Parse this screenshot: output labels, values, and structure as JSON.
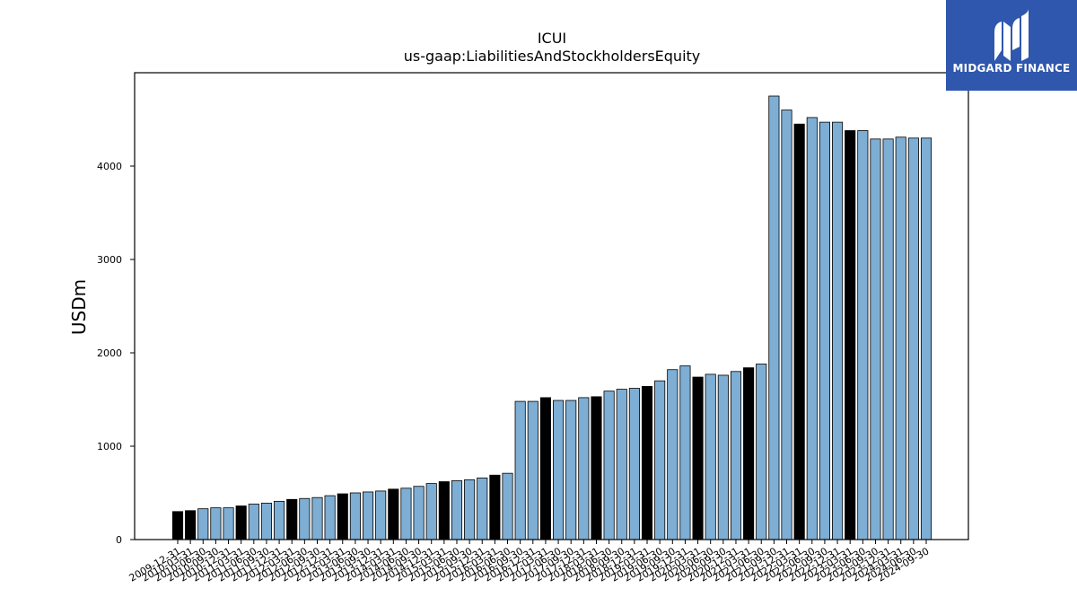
{
  "chart_data": {
    "type": "bar",
    "title": "ICUI",
    "subtitle": "us-gaap:LiabilitiesAndStockholdersEquity",
    "xlabel": "",
    "ylabel": "USDm",
    "ylim": [
      0,
      5000
    ],
    "yticks": [
      0,
      1000,
      2000,
      3000,
      4000
    ],
    "grid": false,
    "colors": {
      "quarter": "#7eaed4",
      "fiscal_year_end": "#000000",
      "edge": "#000000"
    },
    "categories": [
      "2009-12-31",
      "2010-03-31",
      "2010-06-30",
      "2010-09-30",
      "2010-12-31",
      "2011-03-31",
      "2011-06-30",
      "2011-09-30",
      "2011-12-31",
      "2012-03-31",
      "2012-06-30",
      "2012-09-30",
      "2012-12-31",
      "2013-03-31",
      "2013-06-30",
      "2013-09-30",
      "2013-12-31",
      "2014-03-31",
      "2014-06-30",
      "2014-09-30",
      "2014-12-31",
      "2015-03-31",
      "2015-06-30",
      "2015-09-30",
      "2015-12-31",
      "2016-03-31",
      "2016-06-30",
      "2016-09-30",
      "2016-12-31",
      "2017-03-31",
      "2017-06-30",
      "2017-09-30",
      "2017-12-31",
      "2018-03-31",
      "2018-06-30",
      "2018-09-30",
      "2018-12-31",
      "2019-03-31",
      "2019-06-30",
      "2019-09-30",
      "2019-12-31",
      "2020-03-31",
      "2020-06-30",
      "2020-09-30",
      "2020-12-31",
      "2021-03-31",
      "2021-06-30",
      "2021-09-30",
      "2021-12-31",
      "2022-03-31",
      "2022-06-30",
      "2022-09-30",
      "2022-12-31",
      "2023-03-31",
      "2023-06-30",
      "2023-09-30",
      "2023-12-31",
      "2024-03-31",
      "2024-06-30",
      "2024-09-30"
    ],
    "xtick_labels": [
      "2009-12-31",
      "2010-03-31",
      "2010-06-30",
      "2010-09-30",
      "2010-12-31",
      "2011-03-31",
      "2011-06-30",
      "2011-09-30",
      "2011-12-31",
      "2012-03-31",
      "2012-06-30",
      "2012-09-30",
      "2012-12-31",
      "2013-03-31",
      "2013-06-30",
      "2013-09-30",
      "2013-12-31",
      "2014-03-31",
      "2014-06-30",
      "2014-09-30",
      "2014-12-31",
      "2015-03-31",
      "2015-06-30",
      "2015-09-30",
      "2015-12-31",
      "2016-03-31",
      "2016-06-30",
      "2016-09-30",
      "2016-12-31",
      "2017-03-31",
      "2017-06-30",
      "2017-09-30",
      "2017-12-31",
      "2018-03-31",
      "2018-06-30",
      "2018-09-30",
      "2018-12-31",
      "2019-03-31",
      "2019-06-30",
      "2019-09-30",
      "2019-12-31",
      "2020-03-31",
      "2020-06-30",
      "2020-09-30",
      "2020-12-31",
      "2021-03-31",
      "2021-06-30",
      "2021-09-30",
      "2021-12-31",
      "2022-03-31",
      "2022-06-30",
      "2022-09-30",
      "2022-12-31",
      "2023-03-31",
      "2023-06-30",
      "2023-09-30",
      "2023-12-31",
      "2024-03-31",
      "2024-06-30",
      "2024-09-30"
    ],
    "values": [
      300,
      310,
      330,
      340,
      340,
      360,
      380,
      390,
      410,
      430,
      440,
      450,
      470,
      490,
      500,
      510,
      520,
      540,
      550,
      570,
      600,
      620,
      630,
      640,
      660,
      690,
      710,
      1480,
      1480,
      1520,
      1490,
      1490,
      1520,
      1530,
      1590,
      1610,
      1620,
      1640,
      1700,
      1820,
      1860,
      1740,
      1770,
      1760,
      1800,
      1840,
      1880,
      4750,
      4600,
      4450,
      4520,
      4470,
      4470,
      4380,
      4380,
      4290,
      4290,
      4310,
      4300,
      4300
    ],
    "highlight": [
      true,
      true,
      false,
      false,
      false,
      true,
      false,
      false,
      false,
      true,
      false,
      false,
      false,
      true,
      false,
      false,
      false,
      true,
      false,
      false,
      false,
      true,
      false,
      false,
      false,
      true,
      false,
      false,
      false,
      true,
      false,
      false,
      false,
      true,
      false,
      false,
      false,
      true,
      false,
      false,
      false,
      true,
      false,
      false,
      false,
      true,
      false,
      false,
      false,
      true,
      false,
      false,
      false,
      true,
      false,
      false,
      false,
      false,
      false,
      false
    ]
  },
  "logo": {
    "text": "MIDGARD FINANCE"
  }
}
